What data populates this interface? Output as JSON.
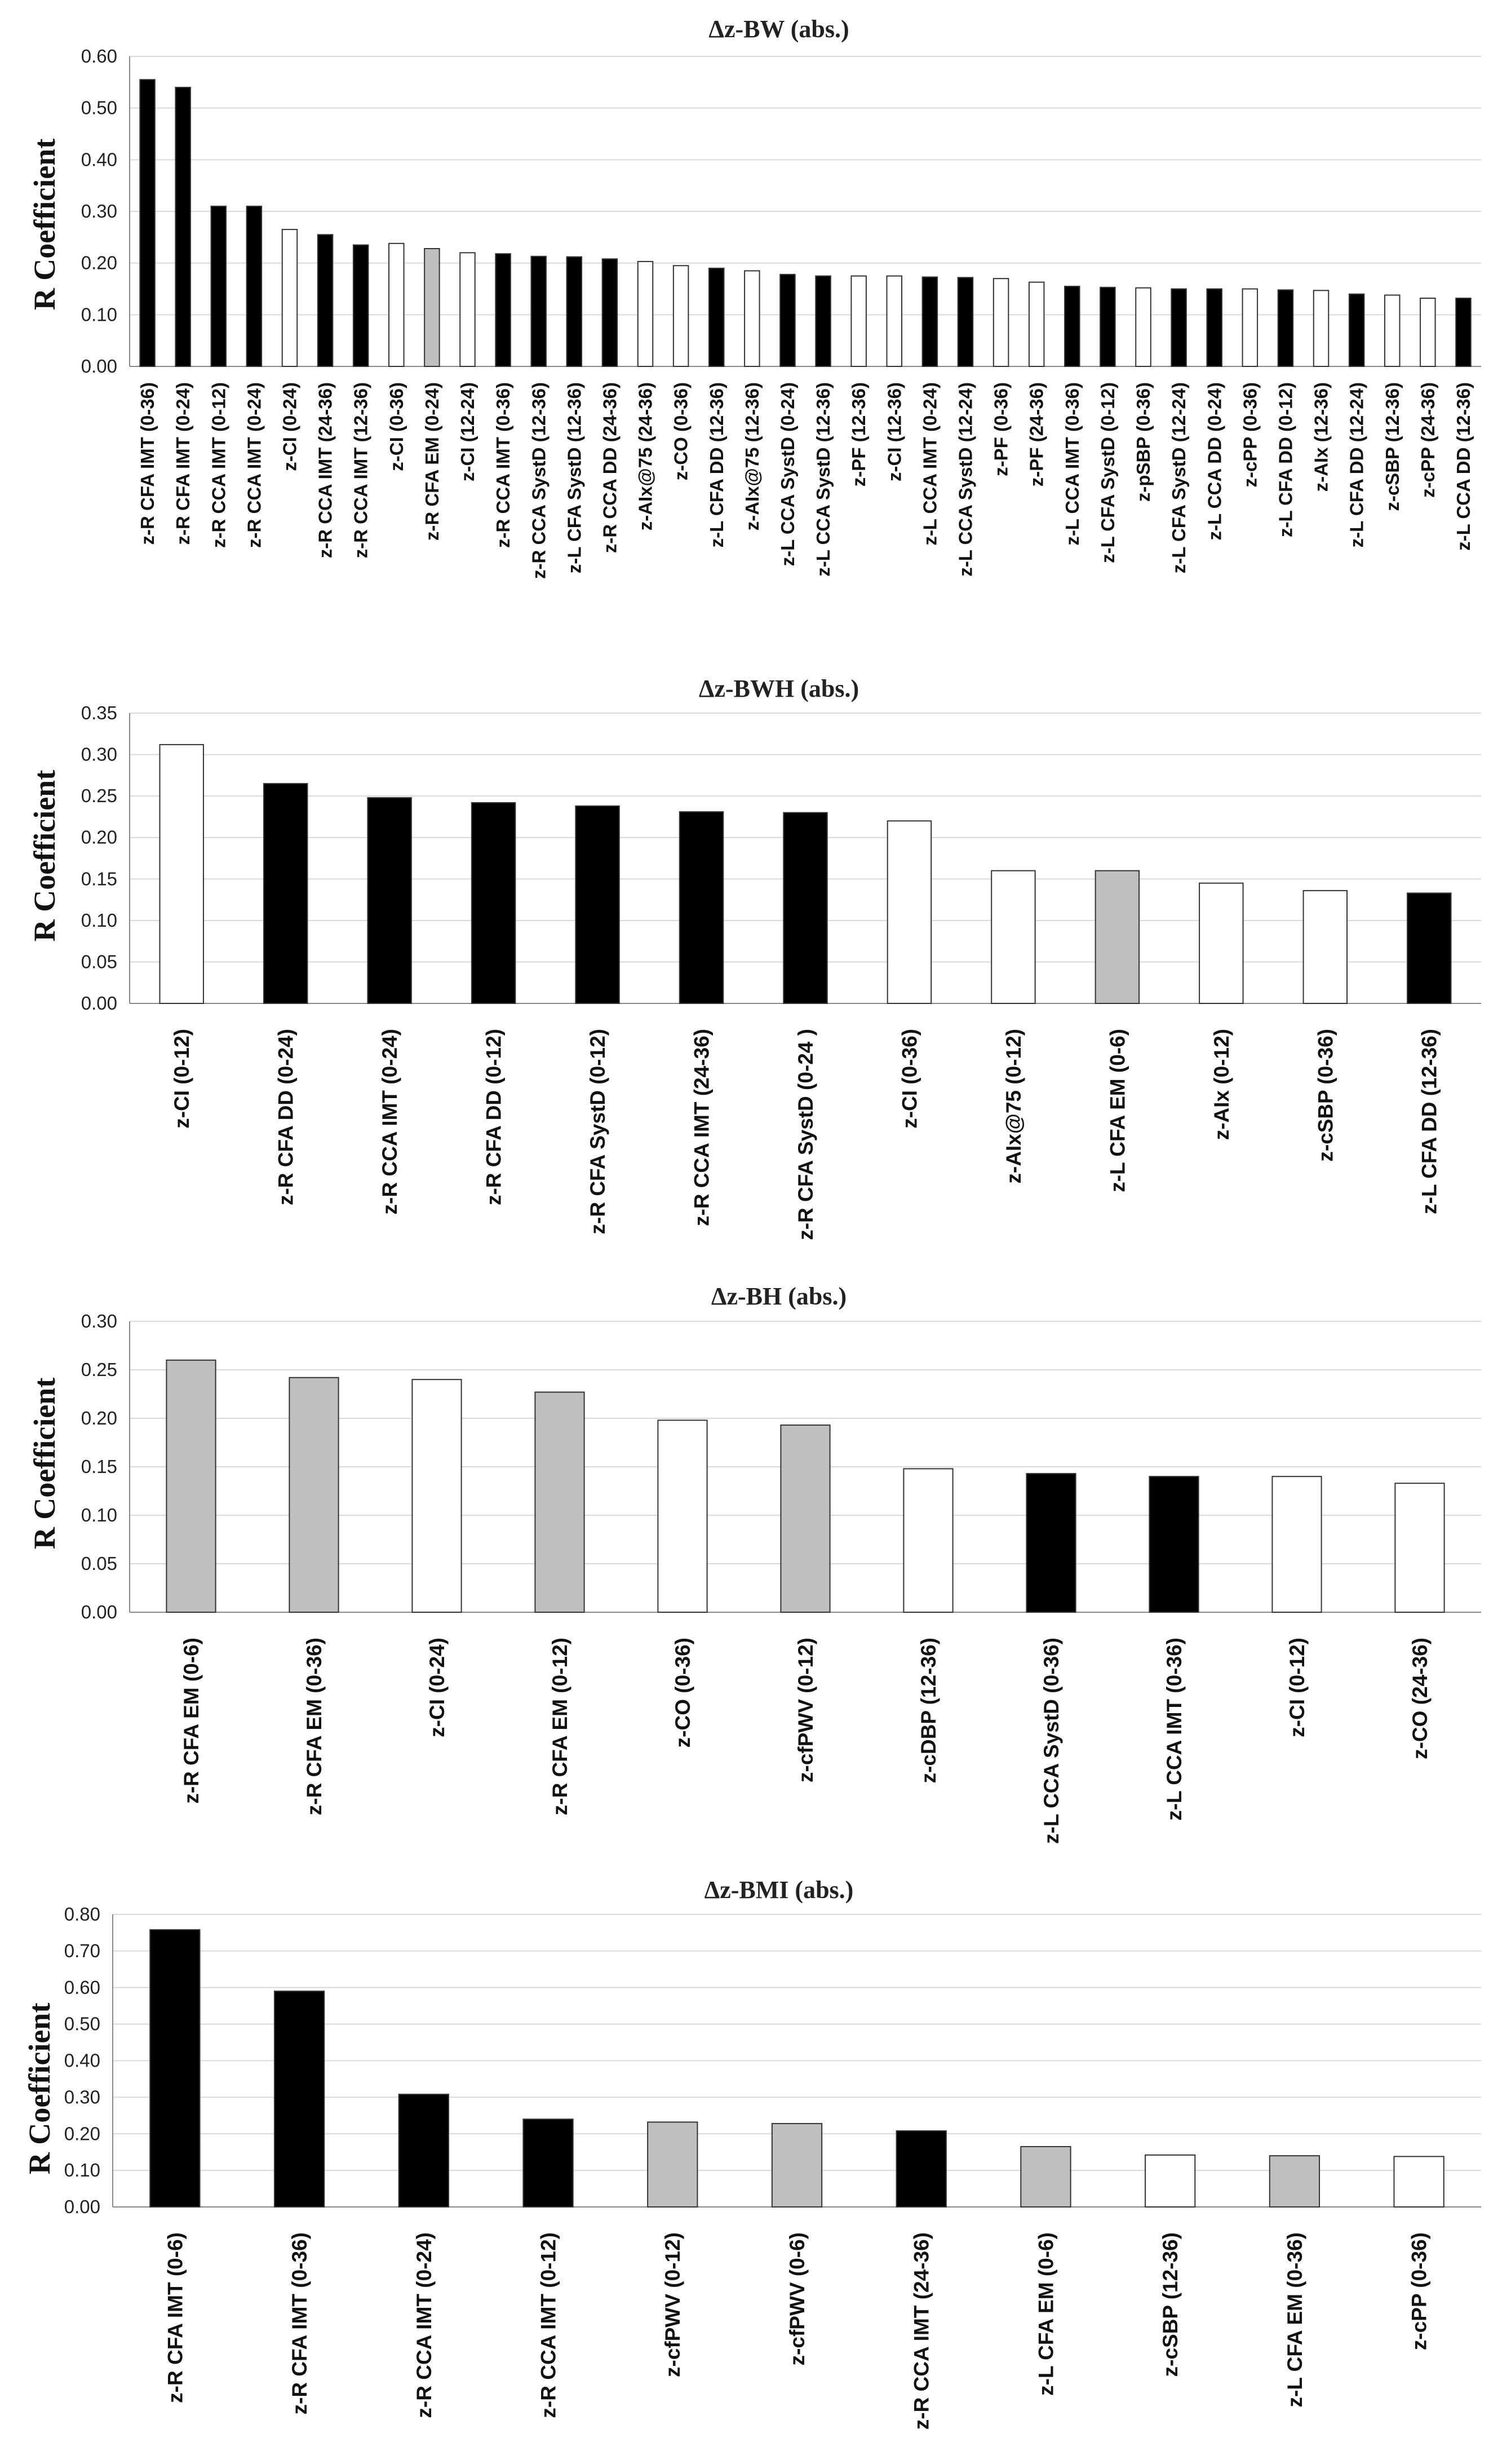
{
  "colors": {
    "black": "#000000",
    "gray": "#bfbfbf",
    "white": "#ffffff"
  },
  "chart_data": [
    {
      "type": "bar",
      "title": "Δz-BW (abs.)",
      "ylabel": "R Coefficient",
      "xlabel": "",
      "ylim": [
        0,
        0.6
      ],
      "yticks": [
        "0.00",
        "0.10",
        "0.20",
        "0.30",
        "0.40",
        "0.50",
        "0.60"
      ],
      "grid": true,
      "categories": [
        "z-R CFA IMT (0-36)",
        "z-R CFA IMT (0-24)",
        "z-R CCA IMT (0-12)",
        "z-R CCA IMT (0-24)",
        "z-CI (0-24)",
        "z-R CCA IMT (24-36)",
        "z-R CCA IMT (12-36)",
        "z-CI (0-36)",
        "z-R CFA EM (0-24)",
        "z-CI (12-24)",
        "z-R CCA IMT (0-36)",
        "z-R CCA SystD (12-36)",
        "z-L CFA SystD (12-36)",
        "z-R CCA DD (24-36)",
        "z-AIx@75 (24-36)",
        "z-CO (0-36)",
        "z-L CFA DD (12-36)",
        "z-AIx@75 (12-36)",
        "z-L CCA SystD (0-24)",
        "z-L CCA SystD (12-36)",
        "z-PF (12-36)",
        "z-CI (12-36)",
        "z-L CCA IMT (0-24)",
        "z-L CCA SystD (12-24)",
        "z-PF (0-36)",
        "z-PF (24-36)",
        "z-L CCA IMT (0-36)",
        "z-L CFA SystD (0-12)",
        "z-pSBP (0-36)",
        "z-L CFA SystD (12-24)",
        "z-L CCA DD (0-24)",
        "z-cPP (0-36)",
        "z-L CFA DD (0-12)",
        "z-AIx (12-36)",
        "z-L CFA DD (12-24)",
        "z-cSBP (12-36)",
        "z-cPP (24-36)",
        "z-L CCA DD (12-36)"
      ],
      "values": [
        0.555,
        0.54,
        0.31,
        0.31,
        0.265,
        0.255,
        0.235,
        0.238,
        0.228,
        0.22,
        0.218,
        0.213,
        0.212,
        0.208,
        0.203,
        0.195,
        0.19,
        0.185,
        0.178,
        0.175,
        0.175,
        0.175,
        0.173,
        0.172,
        0.17,
        0.163,
        0.155,
        0.153,
        0.152,
        0.15,
        0.15,
        0.15,
        0.148,
        0.147,
        0.14,
        0.138,
        0.132,
        0.132
      ],
      "colors": [
        "black",
        "black",
        "black",
        "black",
        "white",
        "black",
        "black",
        "white",
        "gray",
        "white",
        "black",
        "black",
        "black",
        "black",
        "white",
        "white",
        "black",
        "white",
        "black",
        "black",
        "white",
        "white",
        "black",
        "black",
        "white",
        "white",
        "black",
        "black",
        "white",
        "black",
        "black",
        "white",
        "black",
        "white",
        "black",
        "white",
        "white",
        "black"
      ]
    },
    {
      "type": "bar",
      "title": "Δz-BWH (abs.)",
      "ylabel": "R Coefficient",
      "xlabel": "",
      "ylim": [
        0,
        0.35
      ],
      "yticks": [
        "0.00",
        "0.05",
        "0.10",
        "0.15",
        "0.20",
        "0.25",
        "0.30",
        "0.35"
      ],
      "grid": true,
      "categories": [
        "z-CI (0-12)",
        "z-R CFA DD (0-24)",
        "z-R CCA IMT (0-24)",
        "z-R CFA DD (0-12)",
        "z-R CFA SystD (0-12)",
        "z-R CCA IMT (24-36)",
        "z-R CFA SystD (0-24 )",
        "z-CI (0-36)",
        "z-AIx@75 (0-12)",
        "z-L CFA EM (0-6)",
        "z-AIx (0-12)",
        "z-cSBP (0-36)",
        "z-L CFA DD (12-36)"
      ],
      "values": [
        0.312,
        0.265,
        0.248,
        0.242,
        0.238,
        0.231,
        0.23,
        0.22,
        0.16,
        0.16,
        0.145,
        0.136,
        0.133
      ],
      "colors": [
        "white",
        "black",
        "black",
        "black",
        "black",
        "black",
        "black",
        "white",
        "white",
        "gray",
        "white",
        "white",
        "black"
      ]
    },
    {
      "type": "bar",
      "title": "Δz-BH (abs.)",
      "ylabel": "R Coefficient",
      "xlabel": "",
      "ylim": [
        0,
        0.3
      ],
      "yticks": [
        "0.00",
        "0.05",
        "0.10",
        "0.15",
        "0.20",
        "0.25",
        "0.30"
      ],
      "grid": true,
      "categories": [
        "z-R CFA EM (0-6)",
        "z-R CFA EM (0-36)",
        "z-CI (0-24)",
        "z-R CFA EM (0-12)",
        "z-CO (0-36)",
        "z-cfPWV (0-12)",
        "z-cDBP (12-36)",
        "z-L CCA SystD (0-36)",
        "z-L CCA IMT (0-36)",
        "z-CI (0-12)",
        "z-CO (24-36)"
      ],
      "values": [
        0.26,
        0.242,
        0.24,
        0.227,
        0.198,
        0.193,
        0.148,
        0.143,
        0.14,
        0.14,
        0.133
      ],
      "colors": [
        "gray",
        "gray",
        "white",
        "gray",
        "white",
        "gray",
        "white",
        "black",
        "black",
        "white",
        "white"
      ]
    },
    {
      "type": "bar",
      "title": "Δz-BMI (abs.)",
      "ylabel": "R Coefficient",
      "xlabel": "",
      "ylim": [
        0,
        0.8
      ],
      "yticks": [
        "0.00",
        "0.10",
        "0.20",
        "0.30",
        "0.40",
        "0.50",
        "0.60",
        "0.70",
        "0.80"
      ],
      "grid": true,
      "categories": [
        "z-R CFA IMT (0-6)",
        "z-R CFA IMT (0-36)",
        "z-R CCA IMT (0-24)",
        "z-R CCA IMT (0-12)",
        "z-cfPWV (0-12)",
        "z-cfPWV (0-6)",
        "z-R CCA IMT (24-36)",
        "z-L CFA EM (0-6)",
        "z-cSBP (12-36)",
        "z-L CFA EM (0-36)",
        "z-cPP (0-36)"
      ],
      "values": [
        0.758,
        0.59,
        0.308,
        0.24,
        0.232,
        0.228,
        0.208,
        0.165,
        0.142,
        0.14,
        0.138
      ],
      "colors": [
        "black",
        "black",
        "black",
        "black",
        "gray",
        "gray",
        "black",
        "gray",
        "white",
        "gray",
        "white"
      ]
    }
  ]
}
